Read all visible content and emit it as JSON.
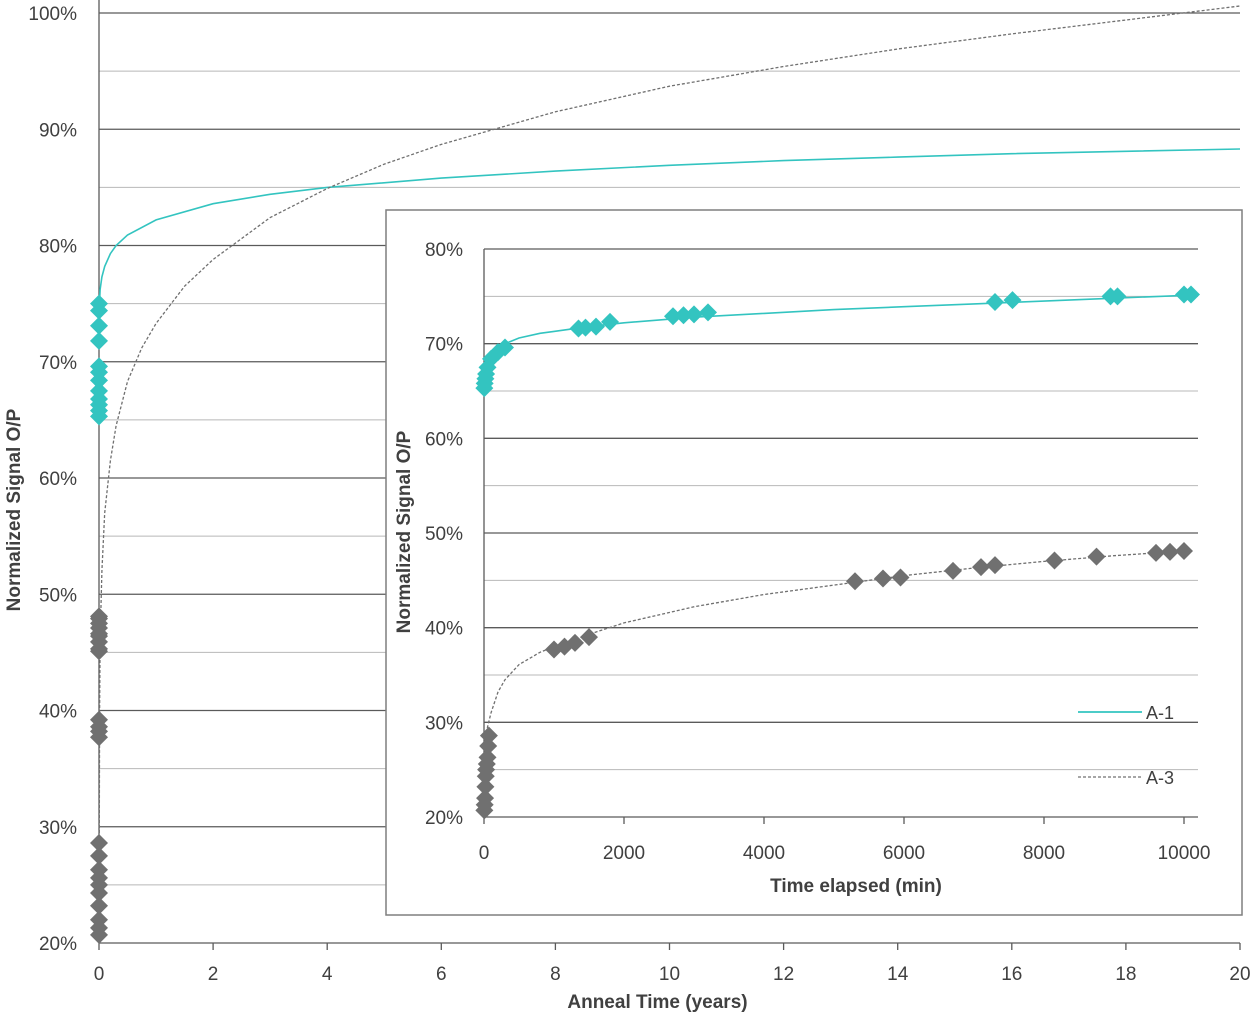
{
  "chart_data": [
    {
      "id": "main",
      "type": "scatter",
      "title": "",
      "xlabel": "Anneal Time (years)",
      "ylabel": "Normalized Signal O/P",
      "xlim": [
        0,
        20
      ],
      "ylim": [
        20,
        100
      ],
      "x_ticks": [
        0,
        2,
        4,
        6,
        8,
        10,
        12,
        14,
        16,
        18,
        20
      ],
      "x_tick_labels": [
        "0",
        "2",
        "4",
        "6",
        "8",
        "10",
        "12",
        "14",
        "16",
        "18",
        "20"
      ],
      "y_ticks": [
        20,
        30,
        40,
        50,
        60,
        70,
        80,
        90,
        100
      ],
      "y_tick_labels": [
        "20%",
        "30%",
        "40%",
        "50%",
        "60%",
        "70%",
        "80%",
        "90%",
        "100%"
      ],
      "y_minor_gridlines": [
        25,
        35,
        45,
        55,
        65,
        75,
        85,
        95
      ],
      "grid": true,
      "series": [
        {
          "name": "A-1",
          "color": "#33c4c0",
          "marker": "diamond",
          "points": [
            [
              0,
              65.3
            ],
            [
              0,
              65.8
            ],
            [
              0,
              66.3
            ],
            [
              0,
              66.8
            ],
            [
              0,
              67.5
            ],
            [
              0,
              68.4
            ],
            [
              0,
              69.1
            ],
            [
              0,
              69.6
            ],
            [
              0,
              71.8
            ],
            [
              0,
              73.1
            ],
            [
              0,
              74.4
            ],
            [
              0,
              75.0
            ]
          ],
          "fit_curve": [
            [
              0,
              74.0
            ],
            [
              0.02,
              76.2
            ],
            [
              0.05,
              77.3
            ],
            [
              0.1,
              78.2
            ],
            [
              0.2,
              79.3
            ],
            [
              0.3,
              80.0
            ],
            [
              0.5,
              80.9
            ],
            [
              1,
              82.2
            ],
            [
              2,
              83.6
            ],
            [
              3,
              84.4
            ],
            [
              4,
              85.0
            ],
            [
              6,
              85.8
            ],
            [
              8,
              86.4
            ],
            [
              10,
              86.9
            ],
            [
              12,
              87.3
            ],
            [
              14,
              87.6
            ],
            [
              16,
              87.9
            ],
            [
              18,
              88.1
            ],
            [
              20,
              88.3
            ]
          ]
        },
        {
          "name": "A-3",
          "color": "#707070",
          "marker": "diamond",
          "points": [
            [
              0,
              20.7
            ],
            [
              0,
              21.3
            ],
            [
              0,
              22.0
            ],
            [
              0,
              23.2
            ],
            [
              0,
              24.3
            ],
            [
              0,
              25.0
            ],
            [
              0,
              25.6
            ],
            [
              0,
              26.3
            ],
            [
              0,
              27.5
            ],
            [
              0,
              28.6
            ],
            [
              0,
              37.7
            ],
            [
              0,
              38.2
            ],
            [
              0,
              38.6
            ],
            [
              0,
              39.2
            ],
            [
              0,
              45.1
            ],
            [
              0,
              45.3
            ],
            [
              0,
              45.9
            ],
            [
              0,
              46.4
            ],
            [
              0,
              46.6
            ],
            [
              0,
              47.1
            ],
            [
              0,
              47.5
            ],
            [
              0,
              47.9
            ],
            [
              0,
              48.1
            ]
          ],
          "fit_curve": [
            [
              0,
              20.0
            ],
            [
              0.01,
              40.0
            ],
            [
              0.02,
              46.0
            ],
            [
              0.05,
              52.0
            ],
            [
              0.1,
              57.0
            ],
            [
              0.2,
              61.5
            ],
            [
              0.3,
              64.5
            ],
            [
              0.5,
              68.3
            ],
            [
              0.75,
              71.2
            ],
            [
              1,
              73.3
            ],
            [
              1.5,
              76.5
            ],
            [
              2,
              78.8
            ],
            [
              3,
              82.4
            ],
            [
              4,
              84.9
            ],
            [
              5,
              87.0
            ],
            [
              6,
              88.7
            ],
            [
              7,
              90.1
            ],
            [
              8,
              91.5
            ],
            [
              10,
              93.7
            ],
            [
              12,
              95.4
            ],
            [
              14,
              96.9
            ],
            [
              16,
              98.2
            ],
            [
              18,
              99.4
            ],
            [
              20,
              100.6
            ]
          ]
        }
      ]
    },
    {
      "id": "inset",
      "type": "scatter",
      "title": "",
      "xlabel": "Time elapsed (min)",
      "ylabel": "Normalized Signal O/P",
      "xlim": [
        0,
        10000
      ],
      "ylim": [
        20,
        80
      ],
      "x_ticks": [
        0,
        2000,
        4000,
        6000,
        8000,
        10000
      ],
      "x_tick_labels": [
        "0",
        "2000",
        "4000",
        "6000",
        "8000",
        "10000"
      ],
      "y_ticks": [
        20,
        30,
        40,
        50,
        60,
        70,
        80
      ],
      "y_tick_labels": [
        "20%",
        "30%",
        "40%",
        "50%",
        "60%",
        "70%",
        "80%"
      ],
      "y_minor_gridlines": [
        25,
        35,
        45,
        55,
        65,
        75
      ],
      "grid": true,
      "legend": "bottom-right",
      "series": [
        {
          "name": "A-1",
          "color": "#33c4c0",
          "marker": "diamond",
          "points": [
            [
              5,
              65.3
            ],
            [
              10,
              65.8
            ],
            [
              20,
              66.3
            ],
            [
              30,
              66.8
            ],
            [
              50,
              67.5
            ],
            [
              100,
              68.4
            ],
            [
              200,
              69.1
            ],
            [
              300,
              69.6
            ],
            [
              1350,
              71.6
            ],
            [
              1450,
              71.7
            ],
            [
              1600,
              71.8
            ],
            [
              1800,
              72.3
            ],
            [
              2700,
              72.9
            ],
            [
              2850,
              73.0
            ],
            [
              3000,
              73.1
            ],
            [
              3200,
              73.3
            ],
            [
              7300,
              74.4
            ],
            [
              7550,
              74.6
            ],
            [
              8950,
              75.0
            ],
            [
              9050,
              75.0
            ],
            [
              10000,
              75.2
            ],
            [
              10100,
              75.2
            ]
          ],
          "fit_curve": [
            [
              0,
              66.8
            ],
            [
              50,
              68.1
            ],
            [
              100,
              68.7
            ],
            [
              200,
              69.5
            ],
            [
              300,
              70.0
            ],
            [
              500,
              70.6
            ],
            [
              800,
              71.1
            ],
            [
              1000,
              71.3
            ],
            [
              1500,
              71.8
            ],
            [
              2000,
              72.2
            ],
            [
              3000,
              72.8
            ],
            [
              4000,
              73.2
            ],
            [
              5000,
              73.6
            ],
            [
              6000,
              73.9
            ],
            [
              7000,
              74.2
            ],
            [
              8000,
              74.5
            ],
            [
              9000,
              74.8
            ],
            [
              10000,
              75.1
            ]
          ]
        },
        {
          "name": "A-3",
          "color": "#707070",
          "marker": "diamond",
          "points": [
            [
              5,
              20.7
            ],
            [
              10,
              21.3
            ],
            [
              15,
              22.0
            ],
            [
              20,
              23.2
            ],
            [
              25,
              24.3
            ],
            [
              30,
              25.0
            ],
            [
              40,
              25.6
            ],
            [
              50,
              26.3
            ],
            [
              60,
              27.5
            ],
            [
              70,
              28.6
            ],
            [
              1000,
              37.7
            ],
            [
              1150,
              38.0
            ],
            [
              1300,
              38.4
            ],
            [
              1500,
              39.0
            ],
            [
              5300,
              44.9
            ],
            [
              5700,
              45.2
            ],
            [
              5950,
              45.3
            ],
            [
              6700,
              46.0
            ],
            [
              7100,
              46.4
            ],
            [
              7300,
              46.6
            ],
            [
              8150,
              47.1
            ],
            [
              8750,
              47.5
            ],
            [
              9600,
              47.9
            ],
            [
              9800,
              48.0
            ],
            [
              10000,
              48.1
            ]
          ],
          "fit_curve": [
            [
              0,
              22.0
            ],
            [
              30,
              28.0
            ],
            [
              50,
              29.5
            ],
            [
              100,
              31.0
            ],
            [
              200,
              33.2
            ],
            [
              300,
              34.5
            ],
            [
              500,
              36.1
            ],
            [
              800,
              37.4
            ],
            [
              1000,
              38.0
            ],
            [
              1500,
              39.3
            ],
            [
              2000,
              40.5
            ],
            [
              3000,
              42.2
            ],
            [
              4000,
              43.5
            ],
            [
              5000,
              44.5
            ],
            [
              6000,
              45.5
            ],
            [
              7000,
              46.3
            ],
            [
              8000,
              47.0
            ],
            [
              9000,
              47.6
            ],
            [
              10000,
              48.1
            ]
          ]
        }
      ]
    }
  ]
}
